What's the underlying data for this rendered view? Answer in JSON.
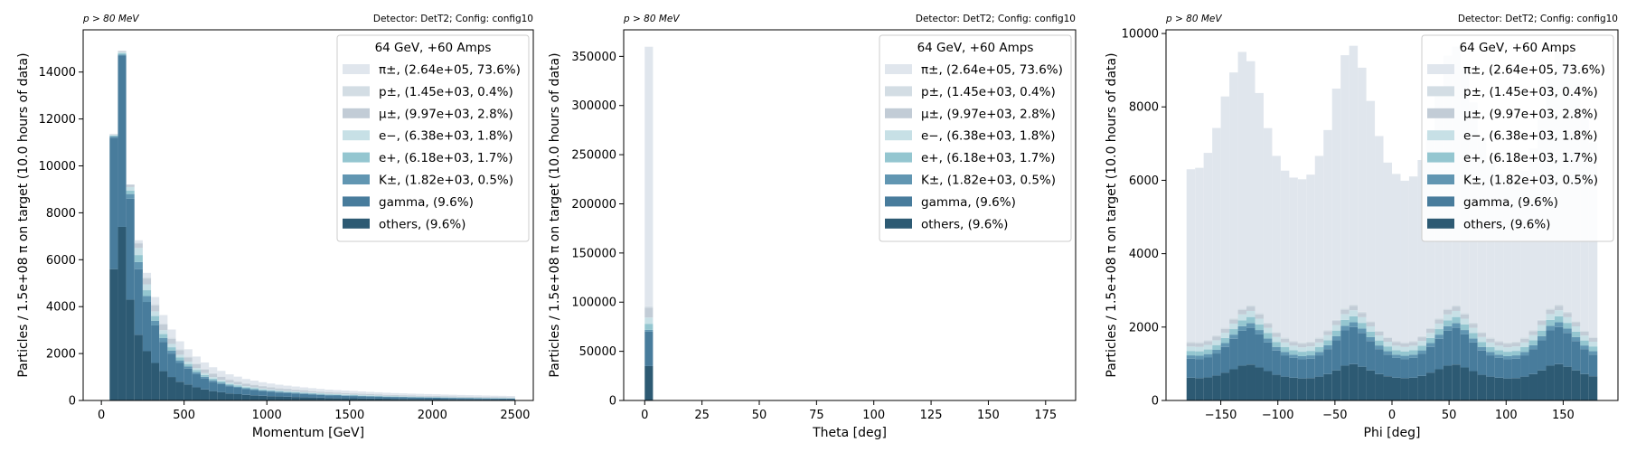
{
  "figure": {
    "ylabel": "Particles / 1.5e+08 π on target (10.0 hours of data)",
    "corner_left": "p > 80 MeV",
    "corner_right": "Detector: DetT2; Config: config10"
  },
  "legend": {
    "title": "64 GeV, +60 Amps",
    "entries": [
      {
        "key": "pi",
        "label": "π±, (2.64e+05, 73.6%)",
        "color": "#e0e6ed"
      },
      {
        "key": "p",
        "label": "p±, (1.45e+03, 0.4%)",
        "color": "#d3dde4"
      },
      {
        "key": "mu",
        "label": "μ±, (9.97e+03, 2.8%)",
        "color": "#c2ccd6"
      },
      {
        "key": "em",
        "label": "e−, (6.38e+03, 1.8%)",
        "color": "#c7e0e6"
      },
      {
        "key": "ep",
        "label": "e+, (6.18e+03, 1.7%)",
        "color": "#94c6d0"
      },
      {
        "key": "k",
        "label": "K±, (1.82e+03, 0.5%)",
        "color": "#6196b2"
      },
      {
        "key": "gamma",
        "label": "gamma, (9.6%)",
        "color": "#487c9c"
      },
      {
        "key": "others",
        "label": "others, (9.6%)",
        "color": "#2d5a73"
      }
    ]
  },
  "chart_data": [
    {
      "type": "bar",
      "stacked": true,
      "xlabel": "Momentum [GeV]",
      "xlim": [
        -110,
        2610
      ],
      "ylim": [
        0,
        15800
      ],
      "xticks": [
        0,
        500,
        1000,
        1500,
        2000,
        2500
      ],
      "yticks": [
        0,
        2000,
        4000,
        6000,
        8000,
        10000,
        12000,
        14000
      ],
      "bin_edges": [
        50,
        100,
        150,
        200,
        250,
        300,
        350,
        400,
        450,
        500,
        550,
        600,
        650,
        700,
        750,
        800,
        850,
        900,
        950,
        1000,
        1050,
        1100,
        1150,
        1200,
        1250,
        1300,
        1350,
        1400,
        1450,
        1500,
        1550,
        1600,
        1650,
        1700,
        1750,
        1800,
        1850,
        1900,
        1950,
        2000,
        2050,
        2100,
        2150,
        2200,
        2250,
        2300,
        2350,
        2400,
        2450,
        2500
      ],
      "series": [
        {
          "key": "others",
          "values": [
            5600,
            7400,
            4300,
            2800,
            2100,
            1600,
            1250,
            1000,
            800,
            680,
            560,
            470,
            400,
            350,
            300,
            270,
            240,
            220,
            200,
            185,
            170,
            160,
            150,
            140,
            130,
            120,
            110,
            105,
            100,
            95,
            90,
            85,
            80,
            75,
            70,
            68,
            65,
            62,
            60,
            58,
            55,
            52,
            50,
            48,
            46,
            44,
            42,
            40,
            38
          ]
        },
        {
          "key": "gamma",
          "values": [
            5600,
            7300,
            4300,
            2800,
            2100,
            1600,
            1250,
            1000,
            800,
            680,
            560,
            470,
            400,
            350,
            300,
            270,
            240,
            220,
            200,
            185,
            170,
            160,
            150,
            140,
            130,
            120,
            110,
            105,
            100,
            95,
            90,
            85,
            80,
            75,
            70,
            68,
            65,
            62,
            60,
            58,
            55,
            52,
            50,
            48,
            46,
            44,
            42,
            40,
            38
          ]
        },
        {
          "key": "k",
          "values": [
            60,
            40,
            200,
            300,
            250,
            200,
            160,
            130,
            110,
            95,
            80,
            70,
            60,
            55,
            50,
            45,
            40,
            38,
            35,
            32,
            30,
            28,
            26,
            25,
            24,
            23,
            22,
            21,
            20,
            19,
            18,
            17,
            16,
            15,
            14,
            14,
            13,
            13,
            12,
            12,
            11,
            11,
            10,
            10,
            10,
            9,
            9,
            9,
            8
          ]
        },
        {
          "key": "ep",
          "values": [
            40,
            60,
            150,
            300,
            250,
            200,
            170,
            140,
            120,
            100,
            90,
            78,
            68,
            60,
            55,
            50,
            45,
            41,
            38,
            35,
            33,
            31,
            29,
            27,
            26,
            25,
            24,
            23,
            22,
            21,
            20,
            19,
            18,
            17,
            17,
            16,
            15,
            15,
            14,
            14,
            13,
            13,
            12,
            12,
            12,
            11,
            11,
            11,
            10
          ]
        },
        {
          "key": "em",
          "values": [
            20,
            50,
            150,
            300,
            250,
            200,
            170,
            140,
            120,
            100,
            90,
            78,
            68,
            60,
            55,
            50,
            45,
            41,
            38,
            35,
            33,
            31,
            29,
            27,
            26,
            25,
            24,
            23,
            22,
            21,
            20,
            19,
            18,
            17,
            17,
            16,
            15,
            15,
            14,
            14,
            13,
            13,
            12,
            12,
            12,
            11,
            11,
            11,
            10
          ]
        },
        {
          "key": "mu",
          "values": [
            30,
            50,
            100,
            200,
            250,
            260,
            240,
            220,
            200,
            180,
            165,
            150,
            138,
            126,
            116,
            108,
            100,
            93,
            87,
            82,
            77,
            73,
            69,
            65,
            62,
            59,
            56,
            54,
            52,
            50,
            48,
            46,
            44,
            42,
            41,
            40,
            38,
            37,
            36,
            35,
            34,
            33,
            32,
            31,
            30,
            29,
            28,
            28,
            27
          ]
        },
        {
          "key": "p",
          "values": [
            0,
            0,
            10,
            30,
            40,
            50,
            50,
            45,
            42,
            40,
            38,
            35,
            32,
            30,
            28,
            27,
            26,
            25,
            24,
            23,
            22,
            21,
            20,
            19,
            18,
            17,
            17,
            16,
            16,
            15,
            15,
            14,
            14,
            13,
            13,
            13,
            12,
            12,
            12,
            11,
            11,
            11,
            11,
            10,
            10,
            10,
            10,
            10,
            10
          ]
        },
        {
          "key": "pi",
          "values": [
            0,
            0,
            0,
            100,
            200,
            300,
            350,
            350,
            330,
            310,
            290,
            270,
            250,
            230,
            210,
            195,
            180,
            168,
            156,
            146,
            137,
            129,
            122,
            116,
            110,
            105,
            100,
            96,
            92,
            88,
            85,
            82,
            79,
            76,
            74,
            71,
            69,
            67,
            65,
            63,
            61,
            60,
            58,
            56,
            55,
            54,
            52,
            51,
            50
          ]
        }
      ]
    },
    {
      "type": "bar",
      "stacked": true,
      "xlabel": "Theta [deg]",
      "xlim": [
        -9.18,
        188.1
      ],
      "ylim": [
        0,
        377000
      ],
      "xticks": [
        0,
        25,
        50,
        75,
        100,
        125,
        150,
        175
      ],
      "yticks": [
        0,
        50000,
        100000,
        150000,
        200000,
        250000,
        300000,
        350000
      ],
      "bin_edges": [
        0,
        3.6
      ],
      "series": [
        {
          "key": "others",
          "values": [
            35000
          ]
        },
        {
          "key": "gamma",
          "values": [
            35000
          ]
        },
        {
          "key": "k",
          "values": [
            1820
          ]
        },
        {
          "key": "ep",
          "values": [
            6180
          ]
        },
        {
          "key": "em",
          "values": [
            6380
          ]
        },
        {
          "key": "mu",
          "values": [
            9970
          ]
        },
        {
          "key": "p",
          "values": [
            1450
          ]
        },
        {
          "key": "pi",
          "values": [
            264000
          ]
        }
      ]
    },
    {
      "type": "bar",
      "stacked": true,
      "xlabel": "Phi [deg]",
      "xlim": [
        -198,
        198
      ],
      "ylim": [
        0,
        10100
      ],
      "xticks": [
        -150,
        -100,
        -50,
        0,
        50,
        100,
        150
      ],
      "yticks": [
        0,
        2000,
        4000,
        6000,
        8000,
        10000
      ],
      "bin_edges": [
        -180,
        -172.5,
        -165,
        -157.5,
        -150,
        -142.5,
        -135,
        -127.5,
        -120,
        -112.5,
        -105,
        -97.5,
        -90,
        -82.5,
        -75,
        -67.5,
        -60,
        -52.5,
        -45,
        -37.5,
        -30,
        -22.5,
        -15,
        -7.5,
        0,
        7.5,
        15,
        22.5,
        30,
        37.5,
        45,
        52.5,
        60,
        67.5,
        75,
        82.5,
        90,
        97.5,
        105,
        112.5,
        120,
        127.5,
        135,
        142.5,
        150,
        157.5,
        165,
        172.5,
        180
      ],
      "series": [
        {
          "key": "others",
          "values": [
            620,
            610,
            630,
            680,
            760,
            850,
            950,
            980,
            900,
            800,
            700,
            650,
            620,
            600,
            610,
            650,
            720,
            820,
            950,
            990,
            920,
            820,
            720,
            660,
            620,
            610,
            620,
            670,
            760,
            850,
            950,
            980,
            900,
            800,
            700,
            650,
            620,
            600,
            610,
            650,
            720,
            820,
            950,
            990,
            920,
            820,
            720,
            660
          ]
        },
        {
          "key": "gamma",
          "values": [
            520,
            520,
            540,
            600,
            700,
            830,
            950,
            1000,
            900,
            780,
            660,
            580,
            540,
            520,
            530,
            580,
            680,
            820,
            960,
            1010,
            920,
            800,
            680,
            590,
            540,
            520,
            540,
            600,
            700,
            830,
            950,
            1000,
            900,
            780,
            660,
            580,
            540,
            520,
            530,
            580,
            680,
            820,
            960,
            1010,
            920,
            800,
            680,
            590
          ]
        },
        {
          "key": "k",
          "values": [
            90,
            90,
            95,
            100,
            105,
            115,
            125,
            130,
            120,
            110,
            100,
            95,
            90,
            88,
            90,
            95,
            105,
            115,
            125,
            130,
            120,
            110,
            100,
            95,
            90,
            88,
            90,
            95,
            105,
            115,
            125,
            130,
            120,
            110,
            100,
            95,
            90,
            88,
            90,
            95,
            105,
            115,
            125,
            130,
            120,
            110,
            100,
            95
          ]
        },
        {
          "key": "ep",
          "values": [
            120,
            120,
            125,
            130,
            140,
            150,
            160,
            165,
            155,
            145,
            135,
            128,
            122,
            120,
            122,
            128,
            138,
            150,
            160,
            165,
            155,
            145,
            135,
            128,
            122,
            120,
            122,
            128,
            138,
            150,
            160,
            165,
            155,
            145,
            135,
            128,
            122,
            120,
            122,
            128,
            138,
            150,
            160,
            165,
            155,
            145,
            135,
            128
          ]
        },
        {
          "key": "em",
          "values": [
            120,
            120,
            125,
            130,
            140,
            150,
            160,
            165,
            155,
            145,
            135,
            128,
            122,
            120,
            122,
            128,
            138,
            150,
            160,
            165,
            155,
            145,
            135,
            128,
            122,
            120,
            122,
            128,
            138,
            150,
            160,
            165,
            155,
            145,
            135,
            128,
            122,
            120,
            122,
            128,
            138,
            150,
            160,
            165,
            155,
            145,
            135,
            128
          ]
        },
        {
          "key": "mu",
          "values": [
            100,
            100,
            102,
            105,
            108,
            112,
            118,
            120,
            115,
            110,
            105,
            102,
            100,
            100,
            100,
            102,
            106,
            112,
            118,
            120,
            115,
            110,
            105,
            102,
            100,
            100,
            100,
            102,
            106,
            112,
            118,
            120,
            115,
            110,
            105,
            102,
            100,
            100,
            100,
            102,
            106,
            112,
            118,
            120,
            115,
            110,
            105,
            102
          ]
        },
        {
          "key": "p",
          "values": [
            30,
            30,
            30,
            30,
            32,
            32,
            35,
            35,
            33,
            32,
            30,
            30,
            30,
            30,
            30,
            30,
            32,
            32,
            35,
            35,
            33,
            32,
            30,
            30,
            30,
            30,
            30,
            30,
            32,
            32,
            35,
            35,
            33,
            32,
            30,
            30,
            30,
            30,
            30,
            30,
            32,
            32,
            35,
            35,
            33,
            32,
            30,
            30
          ]
        },
        {
          "key": "pi",
          "values": [
            4700,
            4750,
            5100,
            5650,
            6300,
            6700,
            7000,
            6650,
            6000,
            5300,
            4800,
            4550,
            4450,
            4450,
            4550,
            4950,
            5450,
            6300,
            6900,
            7050,
            6650,
            6000,
            5300,
            4750,
            4550,
            4400,
            4480,
            4800,
            5300,
            6050,
            6900,
            7050,
            6650,
            6000,
            5300,
            4800,
            4550,
            4450,
            4450,
            4550,
            4950,
            5450,
            6300,
            6900,
            7050,
            6650,
            6000,
            5300
          ]
        }
      ]
    }
  ]
}
